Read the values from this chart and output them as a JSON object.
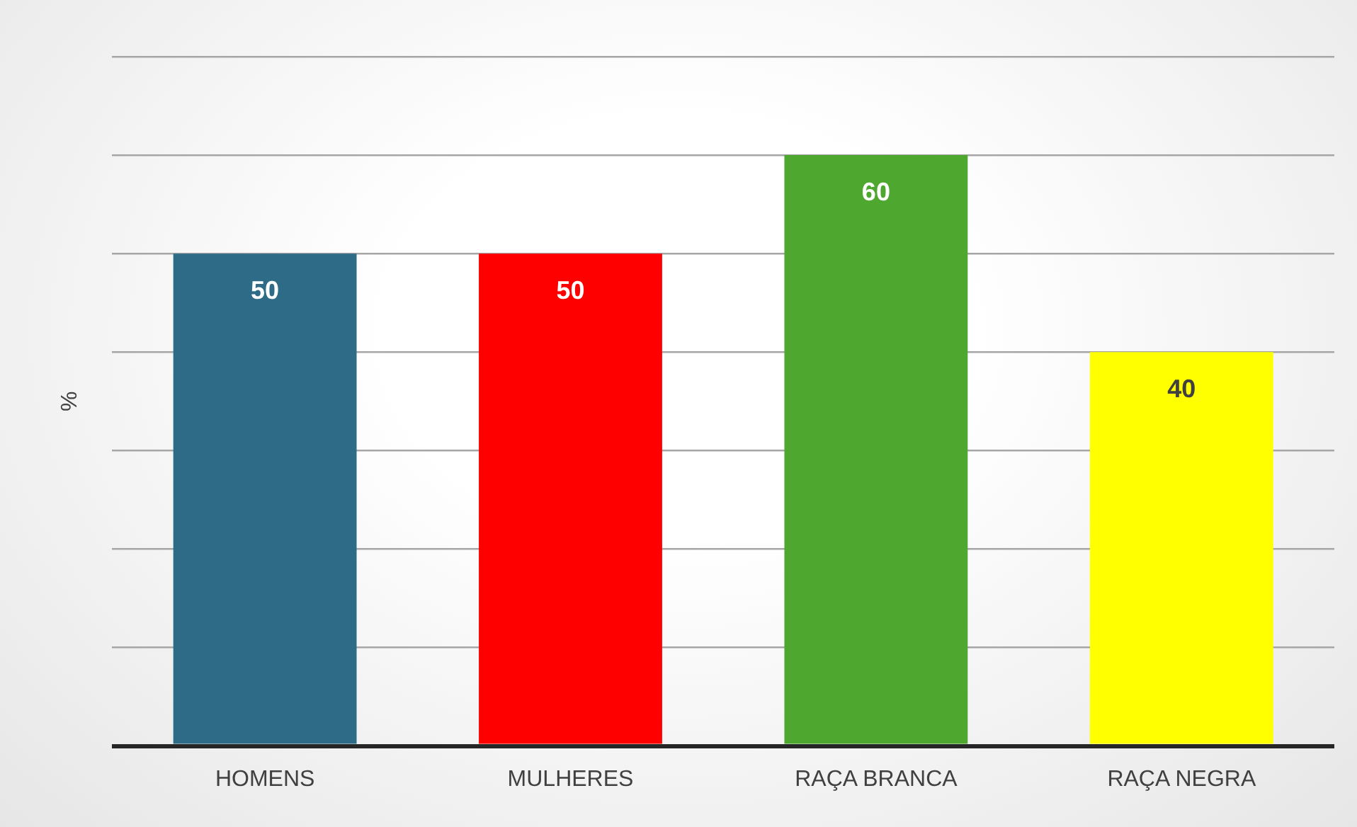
{
  "chart_data": {
    "type": "bar",
    "ylabel": "%",
    "categories": [
      "HOMENS",
      "MULHERES",
      "RAÇA BRANCA",
      "RAÇA NEGRA"
    ],
    "values": [
      50,
      50,
      60,
      40
    ],
    "colors": [
      "#2e6b87",
      "#ff0000",
      "#4ea72e",
      "#ffff00"
    ],
    "ylim": [
      0,
      70
    ],
    "yticks": [
      {
        "value": 0,
        "label": null
      },
      {
        "value": 10,
        "label": null
      },
      {
        "value": 20,
        "label": null
      },
      {
        "value": 30,
        "label": null
      },
      {
        "value": 40,
        "label": null
      },
      {
        "value": 50,
        "label": null
      },
      {
        "value": 60,
        "label": null
      },
      {
        "value": 70,
        "label": null
      }
    ],
    "grid": "y",
    "tick_labels": "x",
    "data_labels": true,
    "legend": false
  }
}
